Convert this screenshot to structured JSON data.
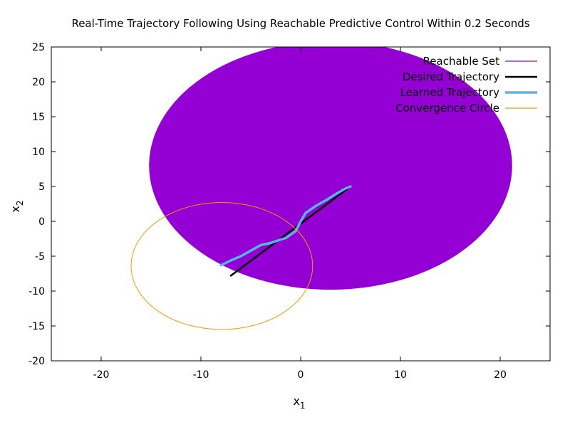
{
  "chart_data": {
    "type": "line",
    "title": "Real-Time Trajectory Following Using Reachable Predictive Control Within 0.2 Seconds",
    "xlabel_main": "x",
    "xlabel_sub": "1",
    "ylabel_main": "x",
    "ylabel_sub": "2",
    "xlim": [
      -25,
      25
    ],
    "ylim": [
      -20,
      25
    ],
    "xticks": [
      -20,
      -10,
      0,
      10,
      20
    ],
    "yticks": [
      -20,
      -15,
      -10,
      -5,
      0,
      5,
      10,
      15,
      20,
      25
    ],
    "grid": false,
    "legend_position": "top-right",
    "series": [
      {
        "name": "Reachable Set",
        "kind": "filled-ellipse",
        "color": "#9400d3",
        "center": [
          3,
          8
        ],
        "radii": [
          18.2,
          17.8
        ]
      },
      {
        "name": "Desired Trajectory",
        "kind": "line",
        "color": "#000000",
        "points": [
          [
            -7,
            -7.8
          ],
          [
            5,
            5
          ]
        ]
      },
      {
        "name": "Learned Trajectory",
        "kind": "line",
        "color": "#56b4e9",
        "points": [
          [
            -8,
            -6.3
          ],
          [
            -7,
            -5.6
          ],
          [
            -6,
            -5.0
          ],
          [
            -5,
            -4.2
          ],
          [
            -4,
            -3.4
          ],
          [
            -3,
            -3.1
          ],
          [
            -2,
            -2.6
          ],
          [
            -1.5,
            -2.4
          ],
          [
            -0.5,
            -1.4
          ],
          [
            0,
            0
          ],
          [
            0.5,
            1.2
          ],
          [
            1.5,
            2.2
          ],
          [
            2.5,
            3.0
          ],
          [
            3.5,
            3.9
          ],
          [
            4.5,
            4.7
          ],
          [
            5,
            5
          ]
        ]
      },
      {
        "name": "Convergence Circle",
        "kind": "ellipse-outline",
        "color": "#e69f00",
        "center": [
          -7.9,
          -6.4
        ],
        "radii": [
          9.1,
          9.1
        ]
      }
    ]
  }
}
